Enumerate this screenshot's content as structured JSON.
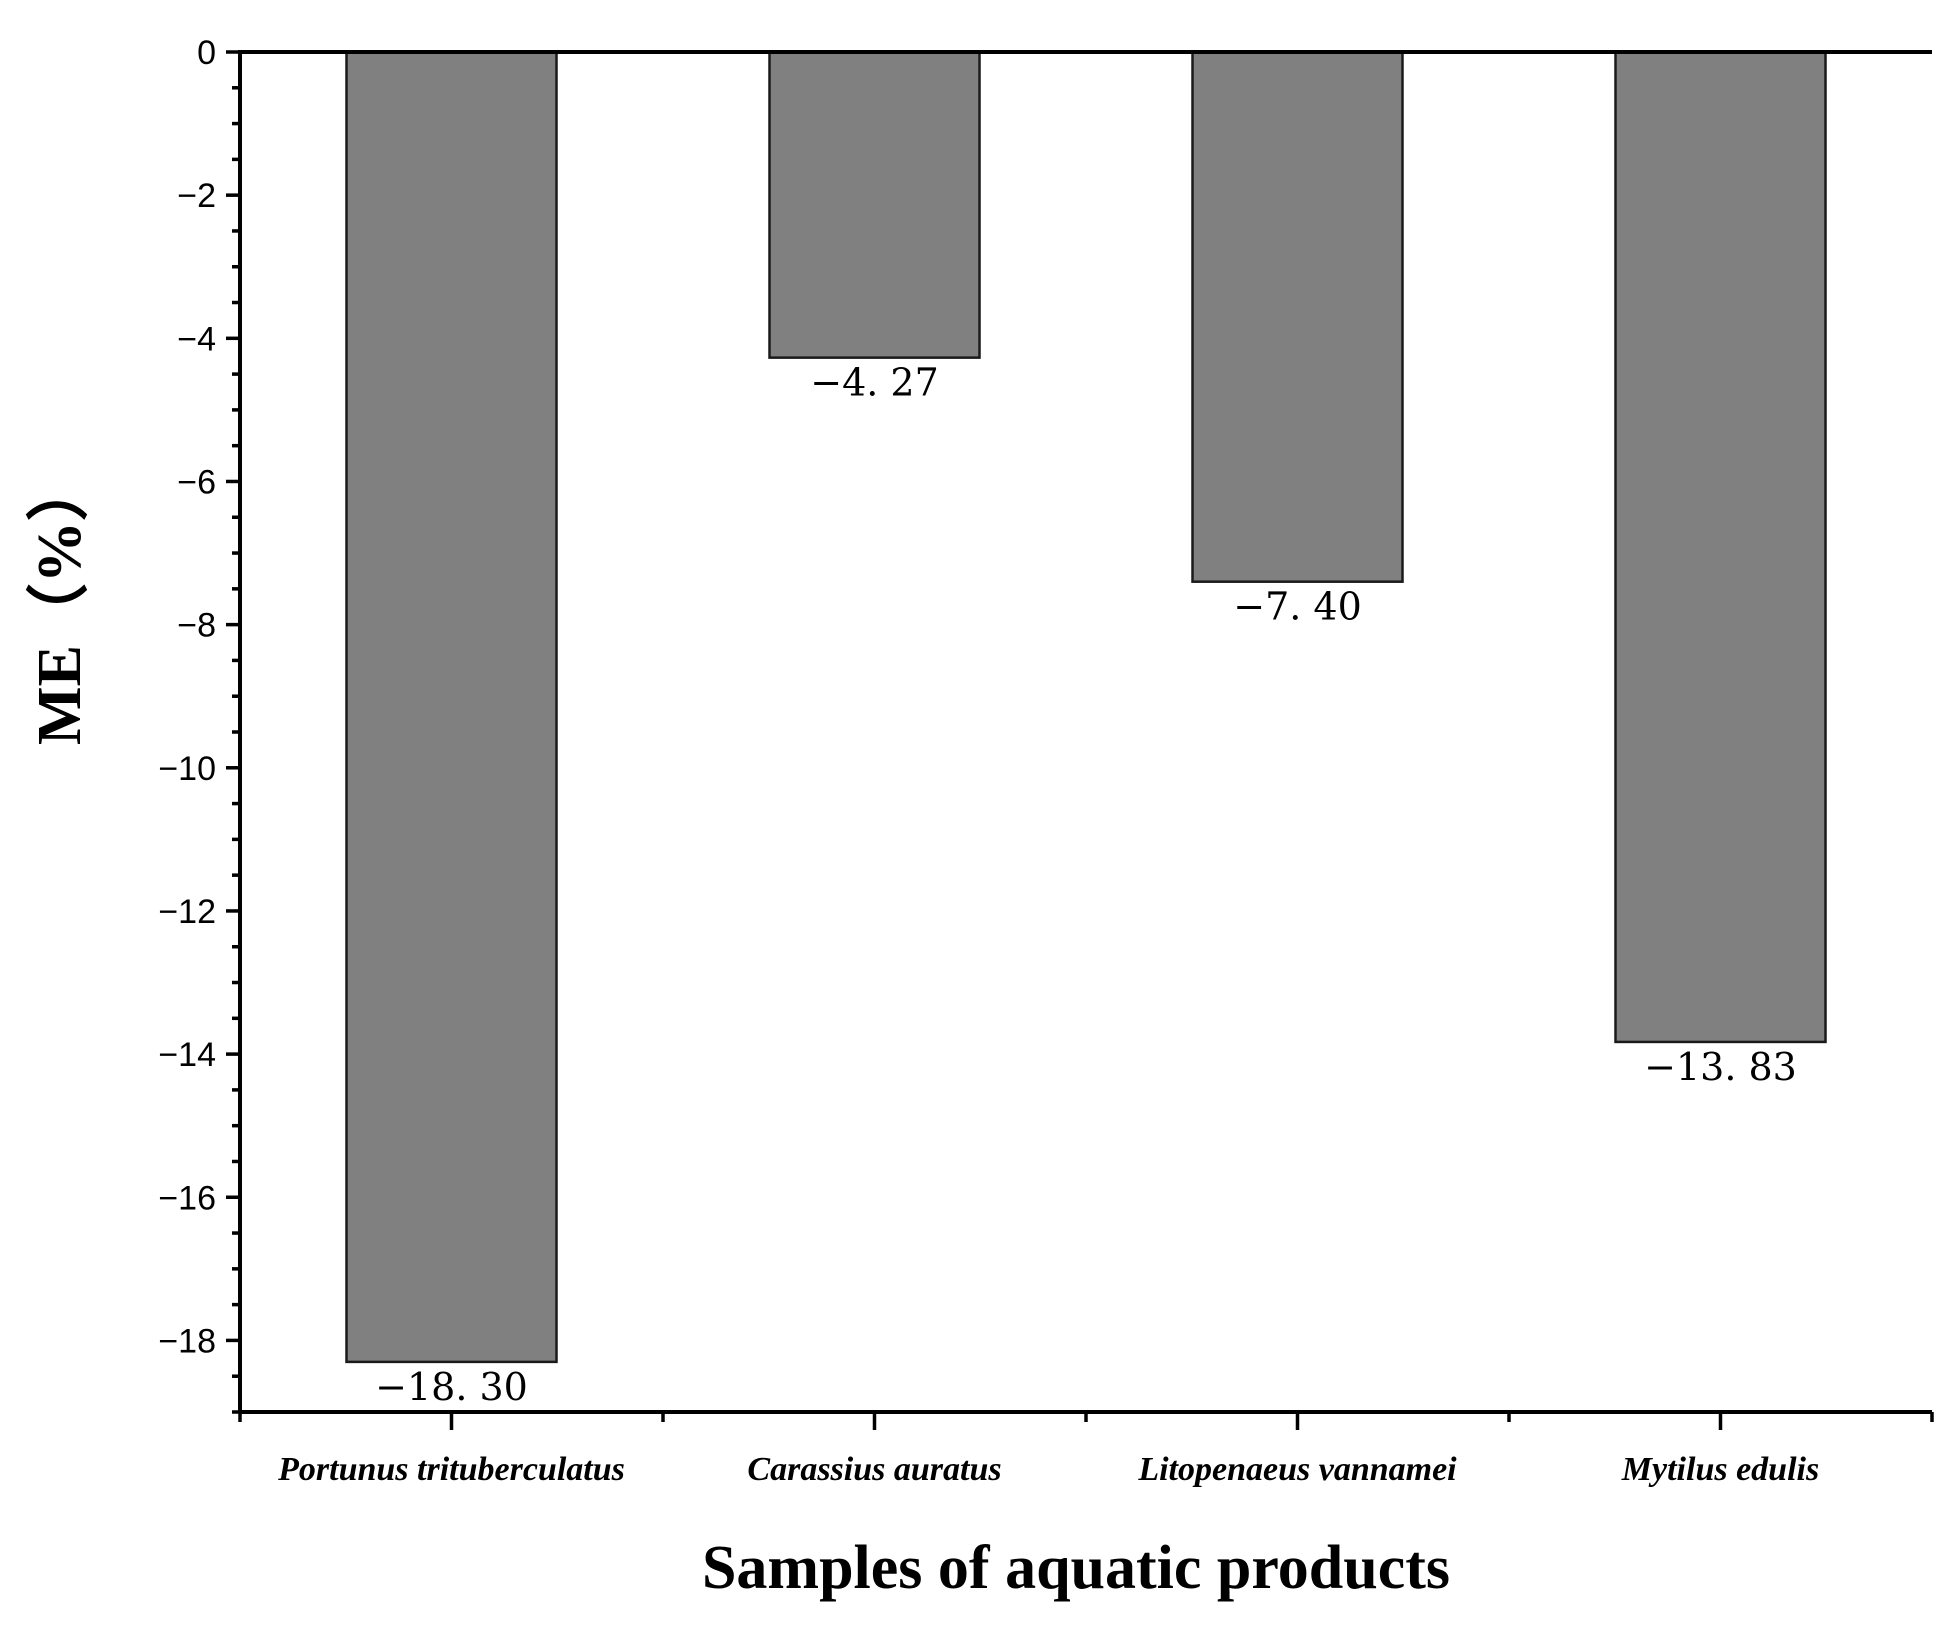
{
  "chart_data": {
    "type": "bar",
    "categories": [
      "Portunus trituberculatus",
      "Carassius auratus",
      "Litopenaeus vannamei",
      "Mytilus edulis"
    ],
    "values": [
      -18.3,
      -4.27,
      -7.4,
      -13.83
    ],
    "data_labels": [
      "−18. 30",
      "−4. 27",
      "−7. 40",
      "−13. 83"
    ],
    "xlabel": "Samples of aquatic products",
    "ylabel": "ME（%）",
    "ylim": [
      -19,
      0
    ],
    "yticks": [
      0,
      -2,
      -4,
      -6,
      -8,
      -10,
      -12,
      -14,
      -16,
      -18
    ],
    "ytick_labels": [
      "0",
      "−2",
      "−4",
      "−6",
      "−8",
      "−10",
      "−12",
      "−14",
      "−16",
      "−18"
    ],
    "bar_color": "#808080",
    "grid": false,
    "legend": "none"
  }
}
